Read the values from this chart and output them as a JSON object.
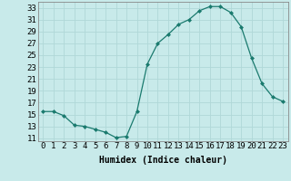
{
  "x": [
    0,
    1,
    2,
    3,
    4,
    5,
    6,
    7,
    8,
    9,
    10,
    11,
    12,
    13,
    14,
    15,
    16,
    17,
    18,
    19,
    20,
    21,
    22,
    23
  ],
  "y": [
    15.5,
    15.5,
    14.8,
    13.2,
    13.0,
    12.5,
    12.0,
    11.1,
    11.3,
    15.5,
    23.5,
    27.0,
    28.5,
    30.2,
    31.0,
    32.5,
    33.2,
    33.2,
    32.2,
    29.8,
    24.5,
    20.2,
    18.0,
    17.2
  ],
  "line_color": "#1a7a6e",
  "marker": "D",
  "marker_size": 2.0,
  "bg_color": "#c8eaea",
  "grid_color": "#b0d8d8",
  "xlabel": "Humidex (Indice chaleur)",
  "ylim": [
    10.5,
    34
  ],
  "xlim": [
    -0.5,
    23.5
  ],
  "yticks": [
    11,
    13,
    15,
    17,
    19,
    21,
    23,
    25,
    27,
    29,
    31,
    33
  ],
  "xticks": [
    0,
    1,
    2,
    3,
    4,
    5,
    6,
    7,
    8,
    9,
    10,
    11,
    12,
    13,
    14,
    15,
    16,
    17,
    18,
    19,
    20,
    21,
    22,
    23
  ],
  "xlabel_fontsize": 7,
  "tick_fontsize": 6.5,
  "spine_color": "#888888"
}
